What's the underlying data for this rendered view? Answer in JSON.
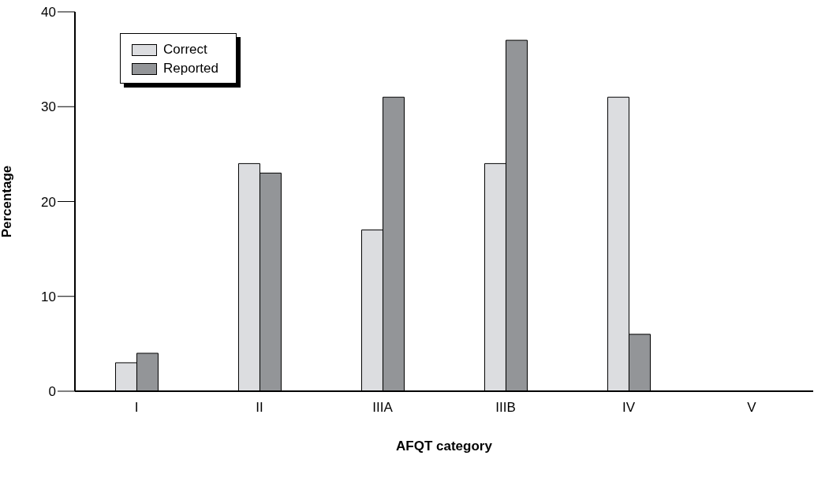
{
  "chart_data": {
    "type": "bar",
    "xlabel": "AFQT category",
    "ylabel": "Percentage",
    "categories": [
      "I",
      "II",
      "IIIA",
      "IIIB",
      "IV",
      "V"
    ],
    "series": [
      {
        "name": "Correct",
        "color": "#dcdde0",
        "values": [
          3,
          24,
          17,
          24,
          31,
          0
        ]
      },
      {
        "name": "Reported",
        "color": "#939598",
        "values": [
          4,
          23,
          31,
          37,
          6,
          0
        ]
      }
    ],
    "ylim": [
      0,
      40
    ],
    "yticks": [
      0,
      10,
      20,
      30,
      40
    ],
    "grid": false,
    "legend": "top left"
  }
}
